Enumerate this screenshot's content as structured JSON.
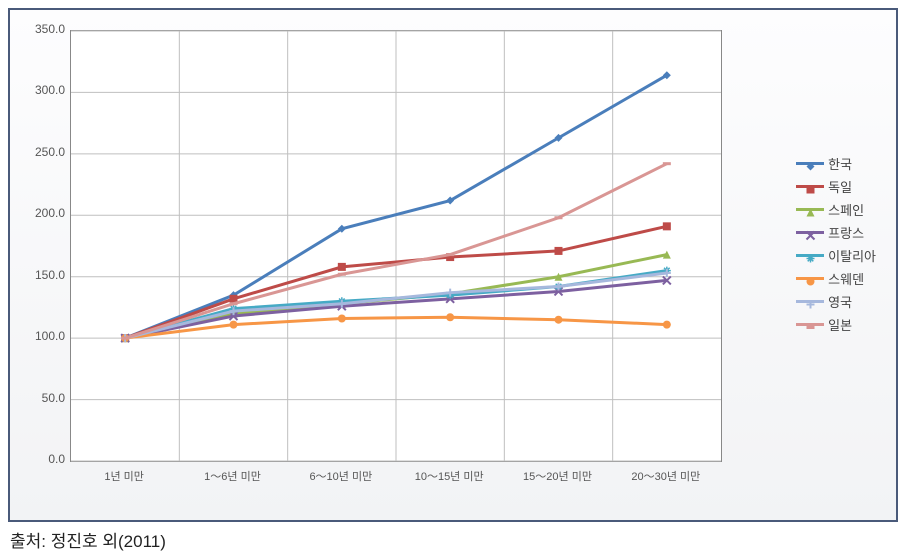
{
  "source": "출처: 정진호 외(2011)",
  "chart": {
    "type": "line",
    "plot_bg": "#ffffff",
    "grid_color": "#bfbfbf",
    "ylim": [
      0,
      350
    ],
    "ytick_step": 50,
    "yticks": [
      "0.0",
      "50.0",
      "100.0",
      "150.0",
      "200.0",
      "250.0",
      "300.0",
      "350.0"
    ],
    "categories": [
      "1년 미만",
      "1～6년 미만",
      "6～10년 미만",
      "10～15년 미만",
      "15～20년 미만",
      "20～30년 미만"
    ],
    "label_fontsize": 12,
    "line_width": 3,
    "marker_size": 8,
    "series": [
      {
        "name": "한국",
        "color": "#4a7ebb",
        "marker": "diamond",
        "values": [
          100,
          135,
          189,
          212,
          263,
          314
        ]
      },
      {
        "name": "독일",
        "color": "#be4b48",
        "marker": "square",
        "values": [
          100,
          132,
          158,
          166,
          171,
          191
        ]
      },
      {
        "name": "스페인",
        "color": "#98b954",
        "marker": "triangle",
        "values": [
          100,
          120,
          128,
          136,
          150,
          168
        ]
      },
      {
        "name": "프랑스",
        "color": "#7d60a0",
        "marker": "x",
        "values": [
          100,
          118,
          126,
          132,
          138,
          147
        ]
      },
      {
        "name": "이탈리아",
        "color": "#46aac5",
        "marker": "star",
        "values": [
          100,
          124,
          130,
          135,
          142,
          155
        ]
      },
      {
        "name": "스웨덴",
        "color": "#f79646",
        "marker": "circle",
        "values": [
          100,
          111,
          116,
          117,
          115,
          111
        ]
      },
      {
        "name": "영국",
        "color": "#a6b8dd",
        "marker": "plus",
        "values": [
          100,
          122,
          128,
          137,
          142,
          153
        ]
      },
      {
        "name": "일본",
        "color": "#d99694",
        "marker": "dash",
        "values": [
          100,
          128,
          152,
          168,
          198,
          242
        ]
      }
    ]
  }
}
